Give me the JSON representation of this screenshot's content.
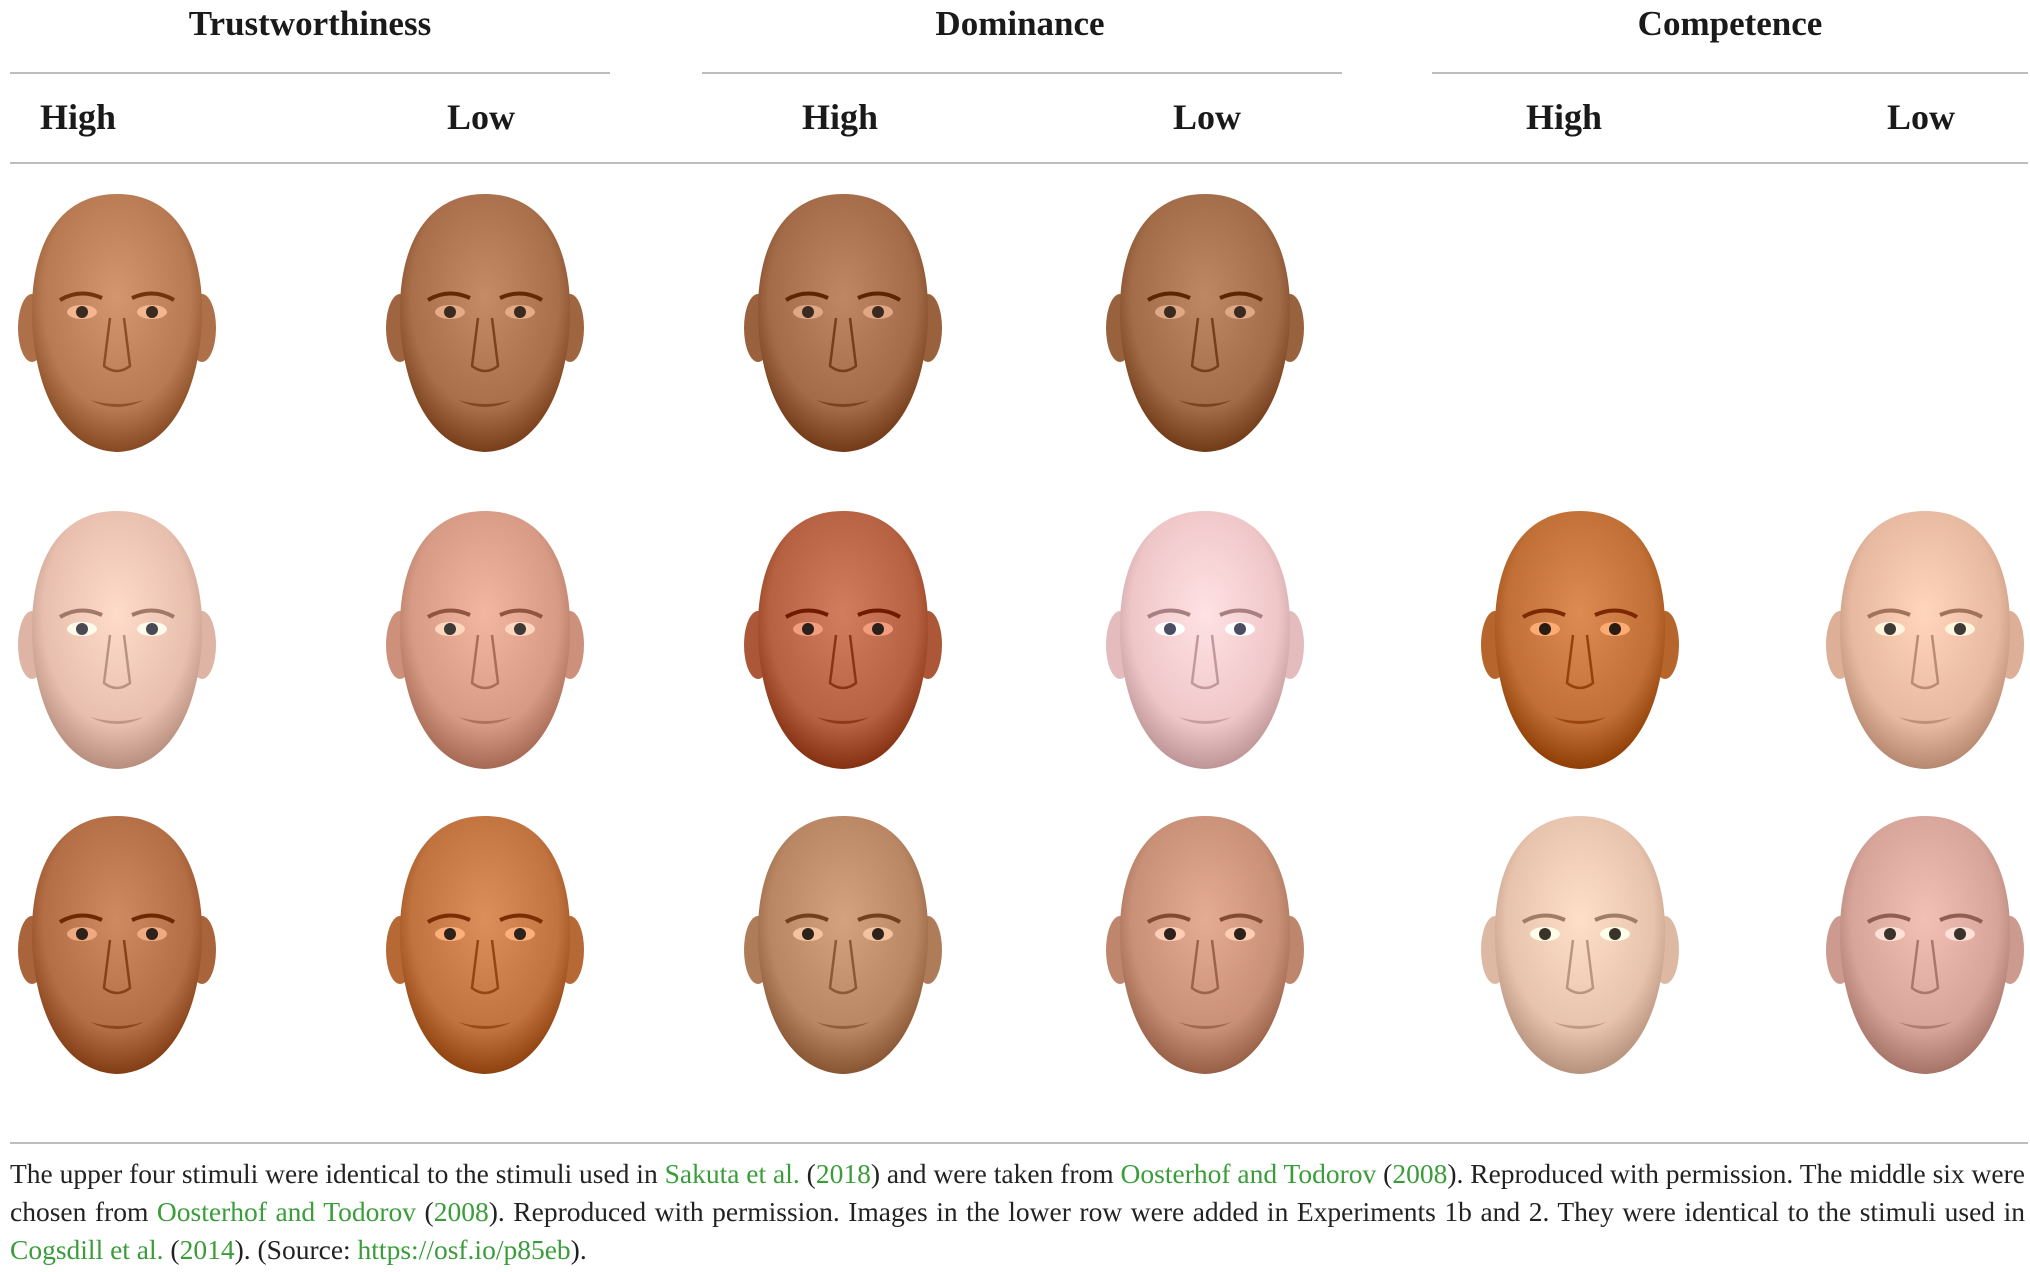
{
  "groups": [
    {
      "title": "Trustworthiness",
      "high": "High",
      "low": "Low"
    },
    {
      "title": "Dominance",
      "high": "High",
      "low": "Low"
    },
    {
      "title": "Competence",
      "high": "High",
      "low": "Low"
    }
  ],
  "faces": {
    "row1": [
      {
        "label": "face-trust-high-1",
        "tone": "#b77a52",
        "eyes": "#3b2a20"
      },
      {
        "label": "face-trust-low-1",
        "tone": "#a86f4a",
        "eyes": "#3b2a20"
      },
      {
        "label": "face-dom-high-1",
        "tone": "#a36b47",
        "eyes": "#3b2a20"
      },
      {
        "label": "face-dom-low-1",
        "tone": "#a26c49",
        "eyes": "#3b2a20"
      }
    ],
    "row2": [
      {
        "label": "face-trust-high-2",
        "tone": "#e8bfae",
        "eyes": "#4a4a55"
      },
      {
        "label": "face-trust-low-2",
        "tone": "#d79a84",
        "eyes": "#3e3a36"
      },
      {
        "label": "face-dom-high-2",
        "tone": "#b56142",
        "eyes": "#2c201a"
      },
      {
        "label": "face-dom-low-2",
        "tone": "#efc6c8",
        "eyes": "#4a4d63"
      },
      {
        "label": "face-comp-high-2",
        "tone": "#c06f36",
        "eyes": "#2a1c12"
      },
      {
        "label": "face-comp-low-2",
        "tone": "#e6b9a0",
        "eyes": "#3e3a36"
      }
    ],
    "row3": [
      {
        "label": "face-trust-high-3",
        "tone": "#b36e45",
        "eyes": "#2d231c"
      },
      {
        "label": "face-trust-low-3",
        "tone": "#c0733f",
        "eyes": "#2d231c"
      },
      {
        "label": "face-dom-high-3",
        "tone": "#b98663",
        "eyes": "#2d231c"
      },
      {
        "label": "face-dom-low-3",
        "tone": "#c99078",
        "eyes": "#2d231c"
      },
      {
        "label": "face-comp-high-3",
        "tone": "#e7c3ad",
        "eyes": "#3a332c"
      },
      {
        "label": "face-comp-low-3",
        "tone": "#d7a49a",
        "eyes": "#3a332c"
      }
    ]
  },
  "caption": {
    "p1": "The upper four stimuli were identical to the stimuli used in ",
    "ref1": "Sakuta et al.",
    "p2": " (",
    "ref1_year": "2018",
    "p3": ") and were taken from ",
    "ref2": "Oosterhof and Todorov",
    "p4": " (",
    "ref2_year": "2008",
    "p5": "). Reproduced with permission. The middle six were chosen from ",
    "ref3": "Oosterhof and Todorov",
    "p6": " (",
    "ref3_year": "2008",
    "p7": "). Reproduced with permission. Images in the lower row were added in Experiments 1b and 2. They were identical to the stimuli used in ",
    "ref4": "Cogsdill et al.",
    "p8": " (",
    "ref4_year": "2014",
    "p9": "). (Source: ",
    "link": "https://osf.io/p85eb",
    "p10": ")."
  }
}
